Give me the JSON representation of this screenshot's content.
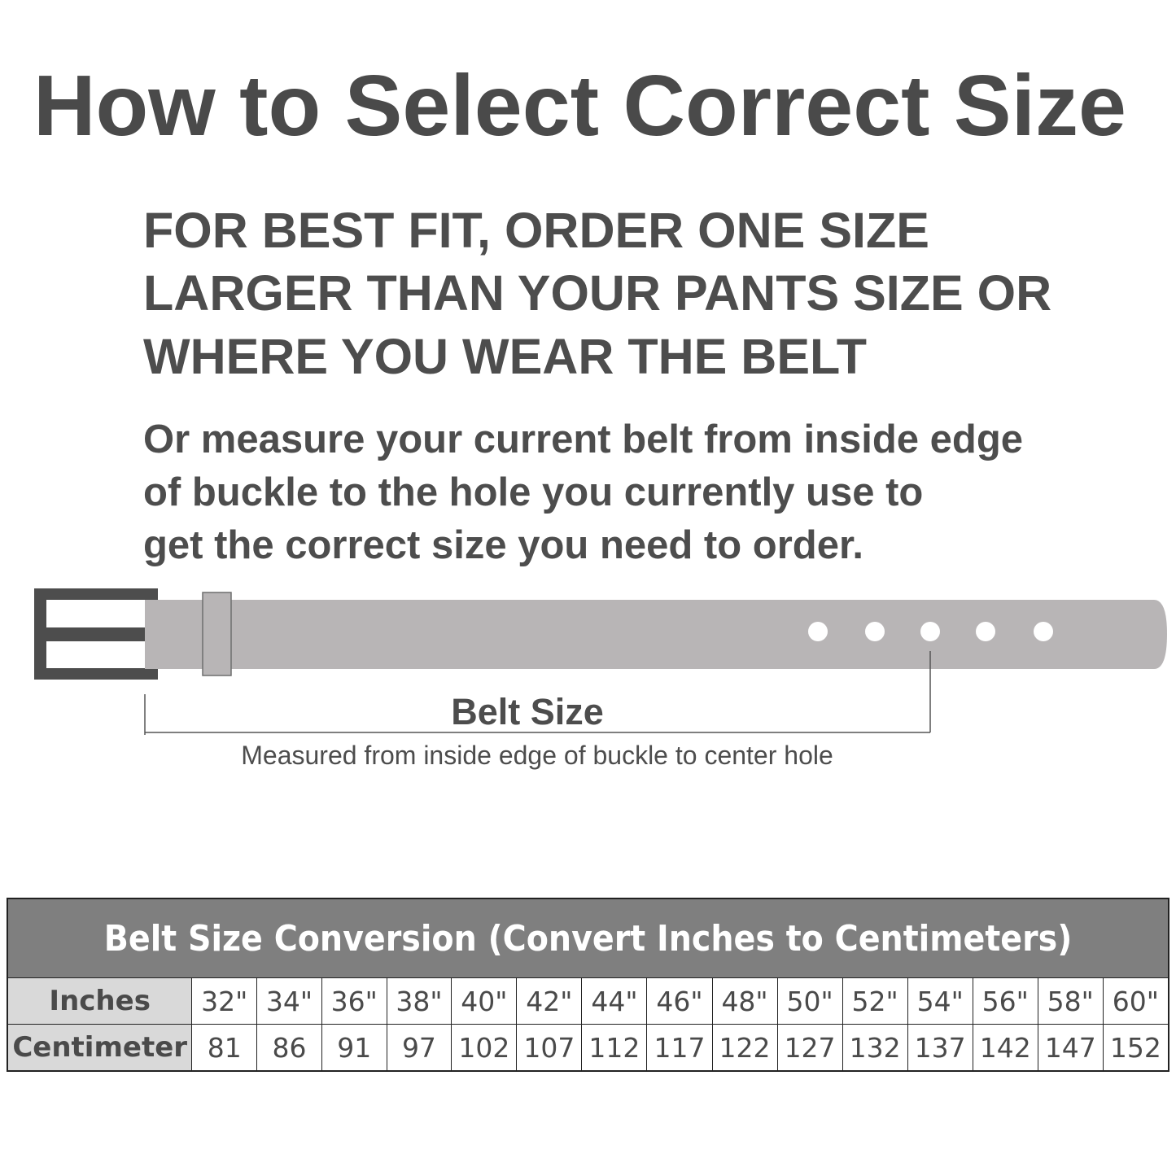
{
  "title": "How to Select Correct Size",
  "tip_lines": [
    "FOR BEST FIT, ORDER ONE SIZE",
    "LARGER THAN YOUR PANTS SIZE OR",
    "WHERE YOU WEAR THE BELT"
  ],
  "measure_lines": [
    "Or measure your current belt from inside edge",
    "of buckle to the hole you currently use to",
    "get the correct size you need to order."
  ],
  "diagram": {
    "belt_size_label": "Belt Size",
    "caption": "Measured from inside edge of buckle to center hole",
    "colors": {
      "buckle": "#4d4d4d",
      "strap": "#b8b5b6",
      "hole": "#ffffff"
    }
  },
  "table": {
    "title": "Belt Size Conversion (Convert Inches to Centimeters)",
    "rows": [
      {
        "label": "Inches",
        "values": [
          "32\"",
          "34\"",
          "36\"",
          "38\"",
          "40\"",
          "42\"",
          "44\"",
          "46\"",
          "48\"",
          "50\"",
          "52\"",
          "54\"",
          "56\"",
          "58\"",
          "60\""
        ]
      },
      {
        "label": "Centimeter",
        "values": [
          "81",
          "86",
          "91",
          "97",
          "102",
          "107",
          "112",
          "117",
          "122",
          "127",
          "132",
          "137",
          "142",
          "147",
          "152"
        ]
      }
    ],
    "colors": {
      "header_bg": "#7f7f7f",
      "label_bg": "#d9d9d9"
    }
  }
}
